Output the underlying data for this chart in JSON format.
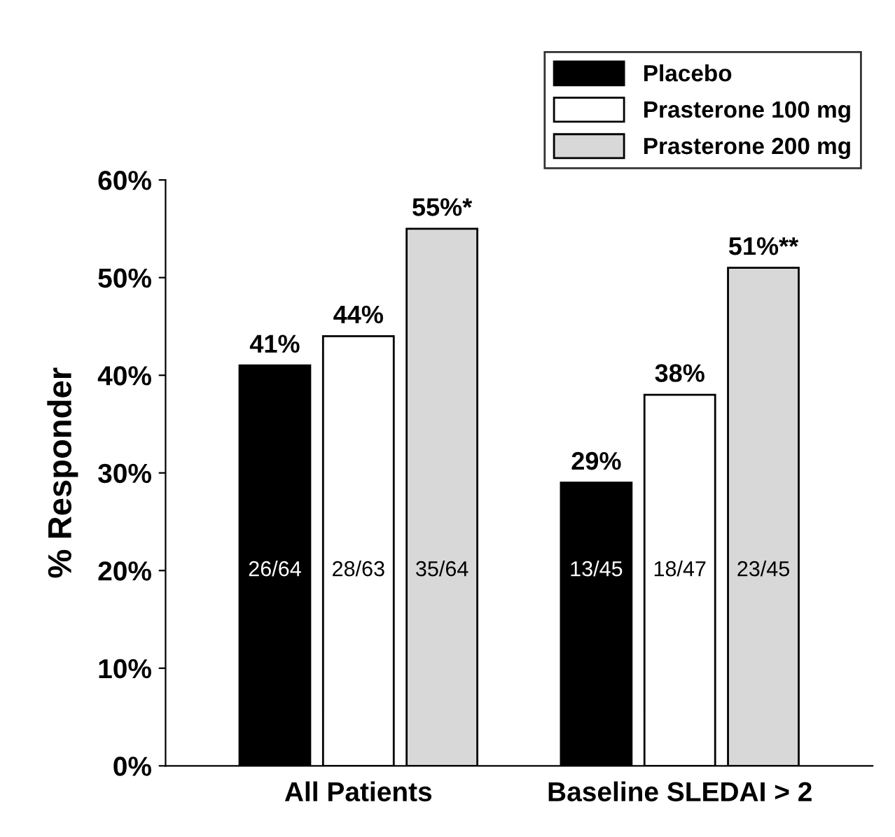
{
  "chart_data": {
    "type": "bar",
    "ylabel": "% Responder",
    "categories": [
      "All Patients",
      "Baseline SLEDAI > 2"
    ],
    "series": [
      {
        "name": "Placebo",
        "color": "#000000",
        "values": [
          41,
          29
        ],
        "value_labels": [
          "41%",
          "29%"
        ]
      },
      {
        "name": "Prasterone 100 mg",
        "color": "#ffffff",
        "values": [
          44,
          38
        ],
        "value_labels": [
          "44%",
          "38%"
        ]
      },
      {
        "name": "Prasterone 200 mg",
        "color": "#d8d8d8",
        "values": [
          55,
          51
        ],
        "value_labels": [
          "55%*",
          "51%**"
        ]
      }
    ],
    "annotations": [
      "26/64",
      "28/63",
      "35/64",
      "13/45",
      "18/47",
      "23/45"
    ],
    "ylim": [
      0,
      60
    ],
    "yticks": [
      {
        "value": 0,
        "label": "0%"
      },
      {
        "value": 10,
        "label": "10%"
      },
      {
        "value": 20,
        "label": "20%"
      },
      {
        "value": 30,
        "label": "30%"
      },
      {
        "value": 40,
        "label": "40%"
      },
      {
        "value": 50,
        "label": "50%"
      },
      {
        "value": 60,
        "label": "60%"
      }
    ],
    "grid": false,
    "legend": "top right"
  }
}
